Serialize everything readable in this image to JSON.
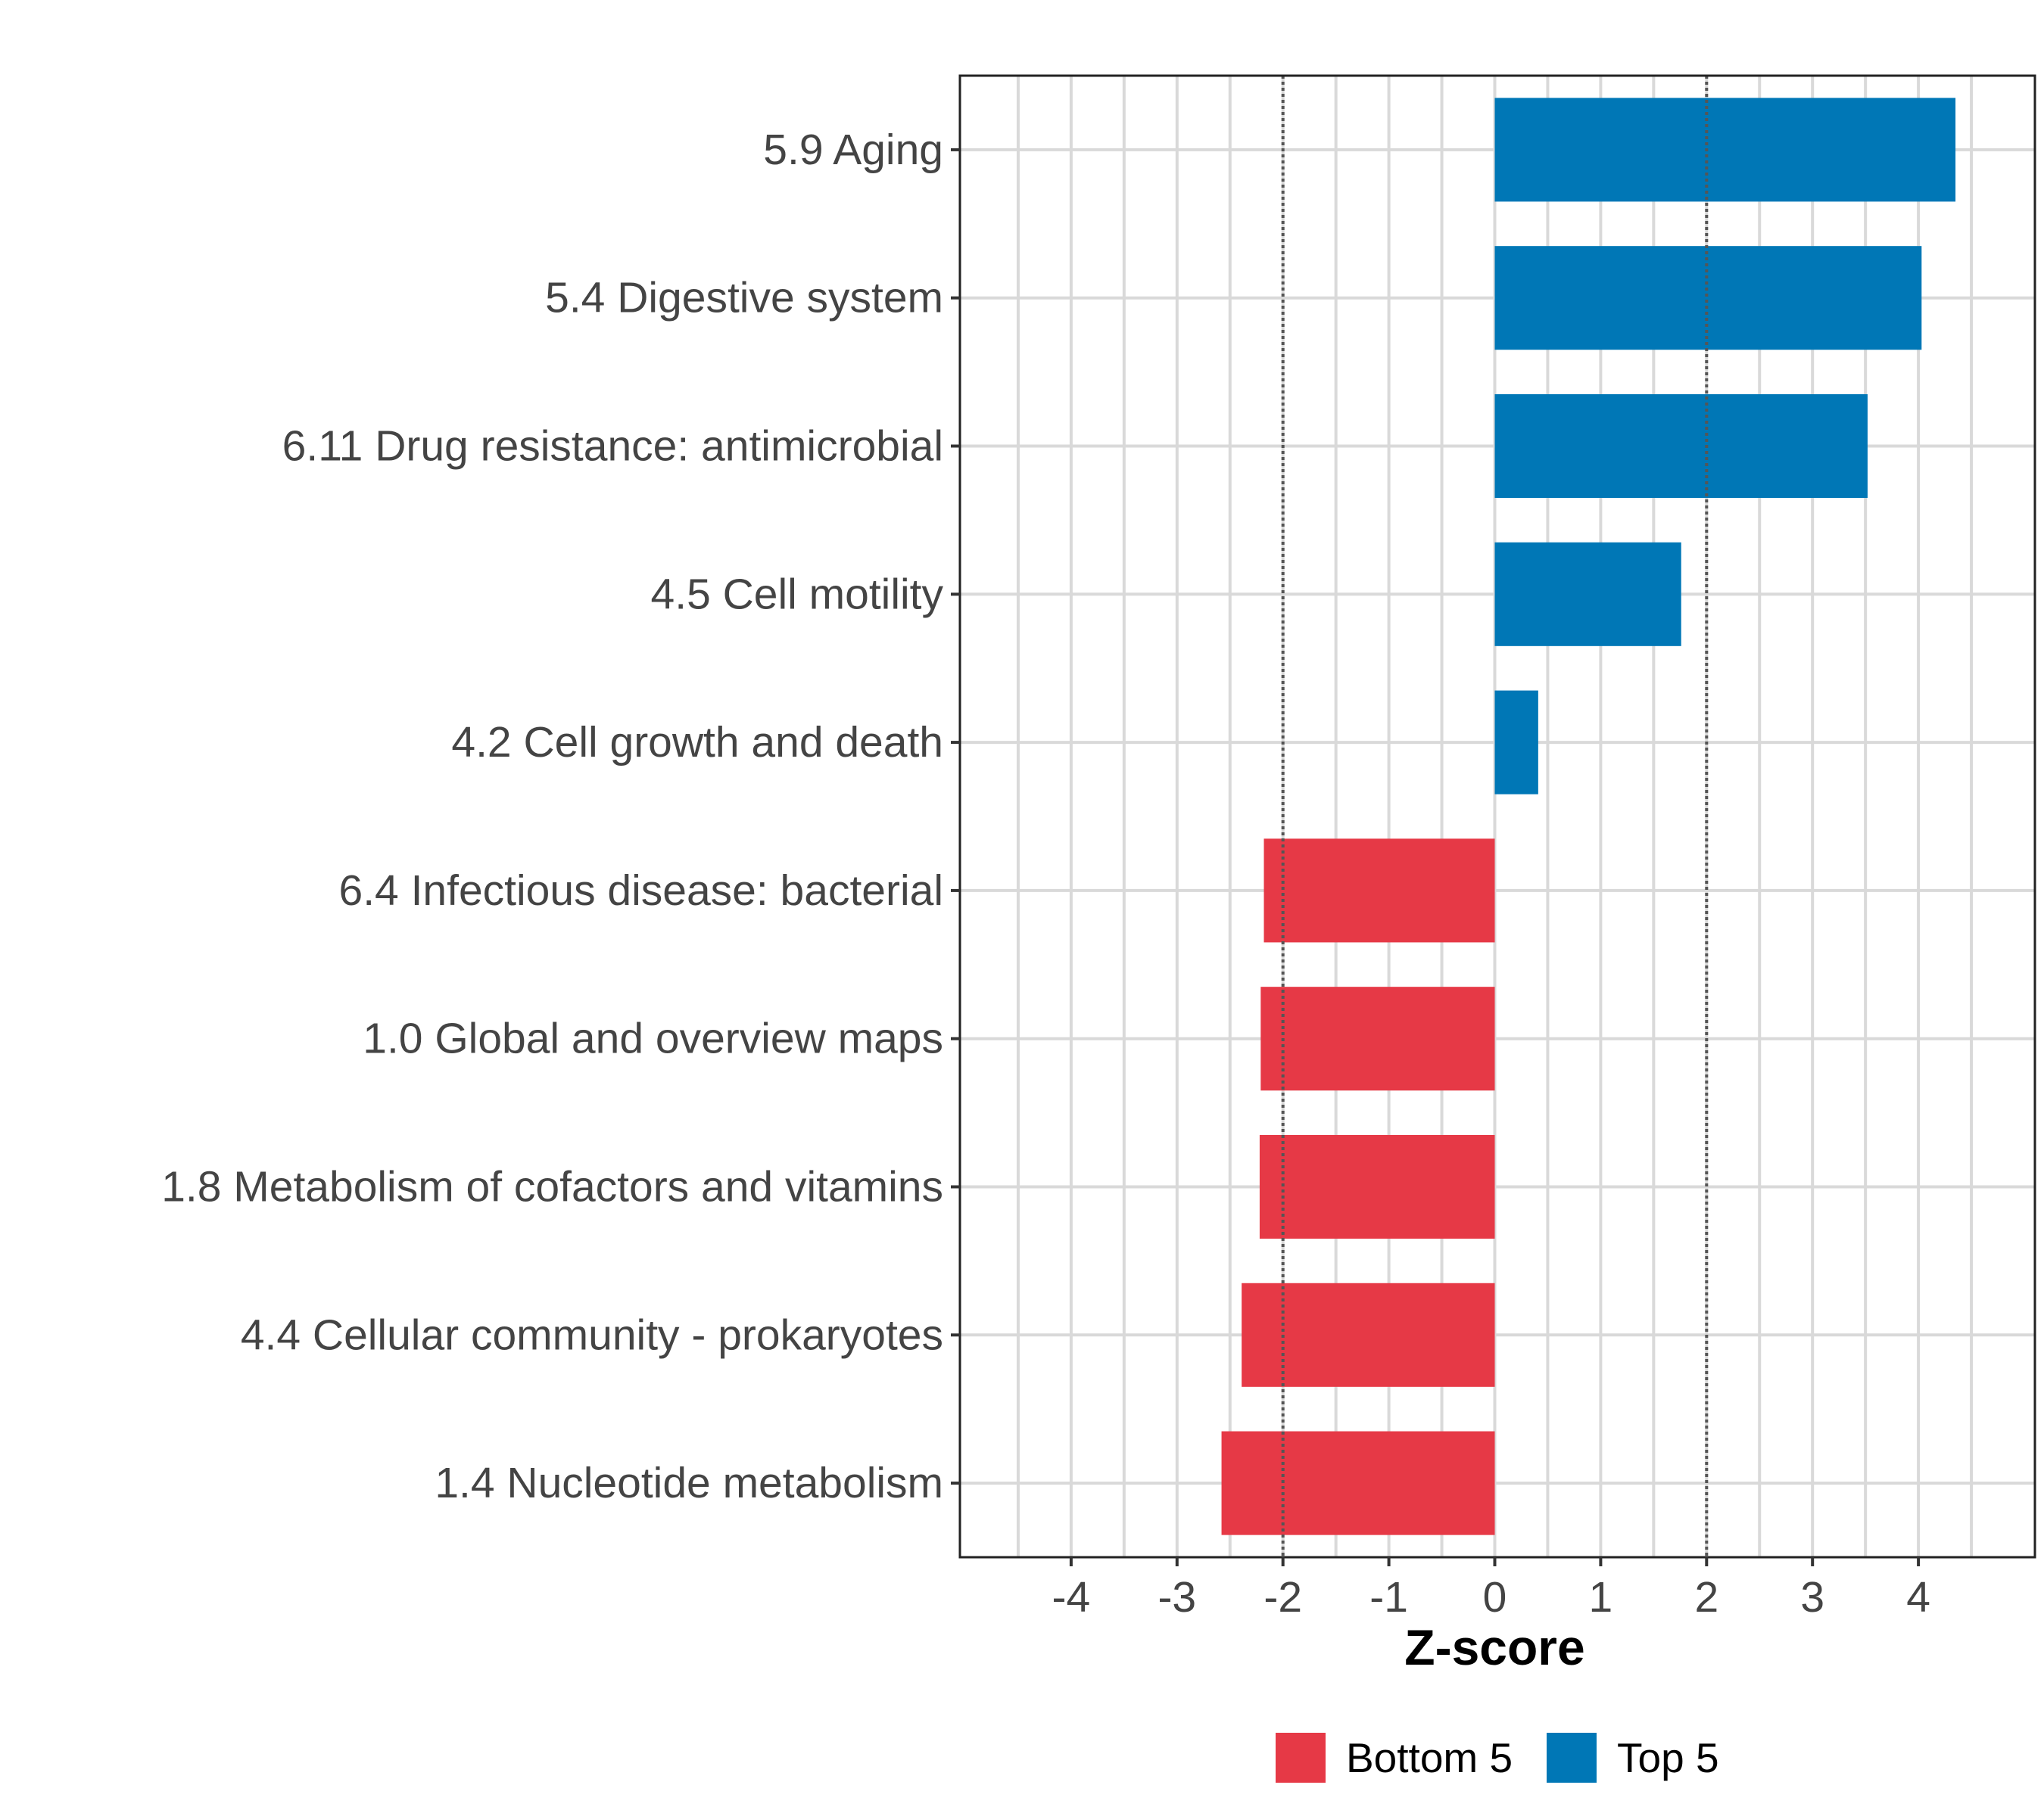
{
  "chart_data": {
    "type": "bar",
    "orientation": "horizontal",
    "title": "",
    "xlabel": "Z-score",
    "ylabel": "",
    "xlim": [
      -5.05,
      5.1
    ],
    "xticks": [
      -4,
      -3,
      -2,
      -1,
      0,
      1,
      2,
      3,
      4
    ],
    "xtick_labels": [
      "-4",
      "-3",
      "-2",
      "-1",
      "0",
      "1",
      "2",
      "3",
      "4"
    ],
    "grid": true,
    "reference_lines": [
      -2,
      2
    ],
    "categories": [
      "5.9 Aging",
      "5.4 Digestive system",
      "6.11 Drug resistance: antimicrobial",
      "4.5 Cell motility",
      "4.2 Cell growth and death",
      "6.4 Infectious disease: bacterial",
      "1.0 Global and overview maps",
      "1.8 Metabolism of cofactors and vitamins",
      "4.4 Cellular community - prokaryotes",
      "1.4 Nucleotide metabolism"
    ],
    "values": [
      4.35,
      4.03,
      3.52,
      1.76,
      0.41,
      -2.18,
      -2.21,
      -2.22,
      -2.39,
      -2.58
    ],
    "groups": [
      "Top 5",
      "Top 5",
      "Top 5",
      "Top 5",
      "Top 5",
      "Bottom 5",
      "Bottom 5",
      "Bottom 5",
      "Bottom 5",
      "Bottom 5"
    ],
    "legend": {
      "position": "bottom",
      "entries": [
        {
          "label": "Bottom 5",
          "color": "#e63946"
        },
        {
          "label": "Top 5",
          "color": "#0077b6"
        }
      ]
    },
    "colors": {
      "Top 5": "#0077b6",
      "Bottom 5": "#e63946"
    }
  }
}
